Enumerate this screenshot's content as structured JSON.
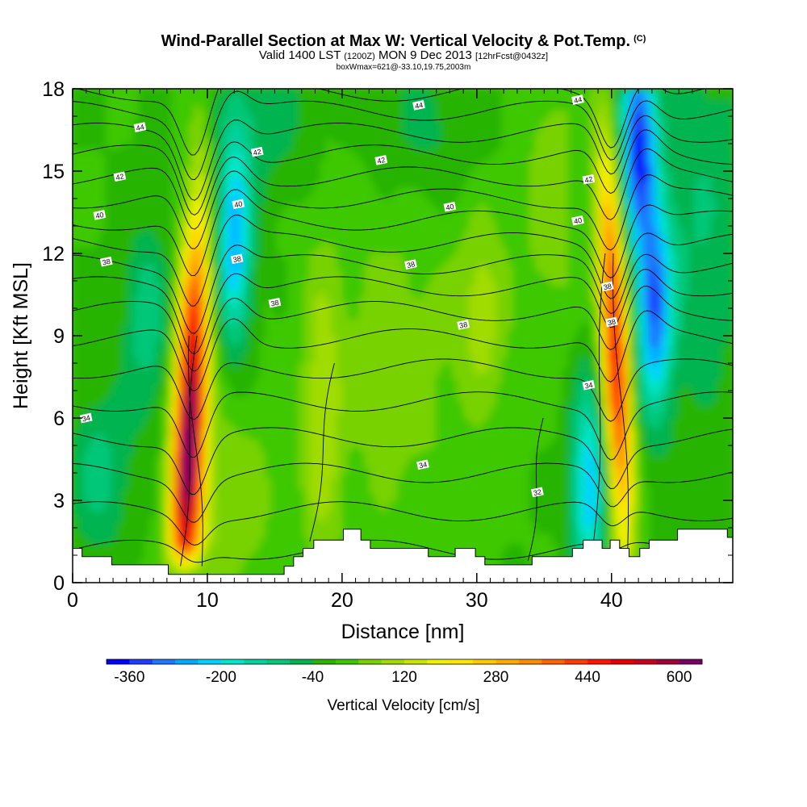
{
  "header": {
    "title": "Wind-Parallel Section at Max W: Vertical Velocity & Pot.Temp.",
    "copyright": "(C)",
    "valid_prefix": "Valid 1400 LST",
    "valid_utc": "(1200Z)",
    "valid_date": "MON 9 Dec 2013",
    "forecast": "[12hrFcst@0432z]",
    "box_info": "boxWmax=621@-33.10,19.75,2003m"
  },
  "chart_data": {
    "type": "heatmap",
    "title": "Wind-Parallel Section at Max W: Vertical Velocity & Pot.Temp.",
    "xlabel": "Distance [nm]",
    "ylabel": "Height [Kft MSL]",
    "xlim": [
      0,
      49
    ],
    "ylim": [
      0,
      18
    ],
    "x_ticks": [
      0,
      10,
      20,
      30,
      40
    ],
    "y_ticks": [
      0,
      3,
      6,
      9,
      12,
      15,
      18
    ],
    "colorbar": {
      "label": "Vertical Velocity [cm/s]",
      "tick_labels": [
        "-360",
        "-200",
        "-40",
        "120",
        "280",
        "440",
        "600"
      ],
      "levels": [
        -400,
        -360,
        -320,
        -280,
        -240,
        -200,
        -160,
        -120,
        -80,
        -40,
        0,
        40,
        80,
        120,
        160,
        200,
        240,
        280,
        320,
        360,
        400,
        440,
        480,
        520,
        560,
        600,
        640
      ],
      "colors": [
        "#0000ff",
        "#1e3cff",
        "#1e78ff",
        "#00aaff",
        "#00d2ff",
        "#00e6c8",
        "#00d2a0",
        "#00c878",
        "#00b450",
        "#28b400",
        "#3cc800",
        "#78d200",
        "#a0dc00",
        "#c8e600",
        "#f0f000",
        "#ffe600",
        "#ffc800",
        "#ffaa00",
        "#ff8c00",
        "#ff6400",
        "#ff3c00",
        "#ff1400",
        "#e60000",
        "#c8001e",
        "#a0003c",
        "#780064"
      ]
    },
    "updrafts": [
      {
        "x": 8.7,
        "z_base": 0.5,
        "z_top": 18,
        "peak_cms": 621,
        "peak_height": 5.5,
        "description": "main updraft core"
      },
      {
        "x": 40.5,
        "z_base": 1.0,
        "z_top": 18,
        "peak_cms": 480,
        "peak_height": 8.5,
        "description": "second updraft core"
      }
    ],
    "downdrafts": [
      {
        "x": 12,
        "z": 12.5,
        "min_cms": -260
      },
      {
        "x": 38.3,
        "z": 3.5,
        "min_cms": -240
      },
      {
        "x": 42,
        "z": 16,
        "min_cms": -360
      },
      {
        "x": 43.2,
        "z": 10,
        "min_cms": -300
      }
    ],
    "theta_contour_labels": [
      {
        "x": 1,
        "z": 6.0,
        "label": "34"
      },
      {
        "x": 2.5,
        "z": 11.7,
        "label": "38"
      },
      {
        "x": 2,
        "z": 13.4,
        "label": "40"
      },
      {
        "x": 3.5,
        "z": 14.8,
        "label": "42"
      },
      {
        "x": 5,
        "z": 16.6,
        "label": "44"
      },
      {
        "x": 12.2,
        "z": 11.8,
        "label": "38"
      },
      {
        "x": 12.3,
        "z": 13.8,
        "label": "40"
      },
      {
        "x": 13.7,
        "z": 15.7,
        "label": "42"
      },
      {
        "x": 15,
        "z": 10.2,
        "label": "38"
      },
      {
        "x": 22.9,
        "z": 15.4,
        "label": "42"
      },
      {
        "x": 25.7,
        "z": 17.4,
        "label": "44"
      },
      {
        "x": 25.1,
        "z": 11.6,
        "label": "38"
      },
      {
        "x": 28,
        "z": 13.7,
        "label": "40"
      },
      {
        "x": 29,
        "z": 9.4,
        "label": "38"
      },
      {
        "x": 26,
        "z": 4.3,
        "label": "34"
      },
      {
        "x": 34.5,
        "z": 3.3,
        "label": "32"
      },
      {
        "x": 37.5,
        "z": 13.2,
        "label": "40"
      },
      {
        "x": 38.3,
        "z": 14.7,
        "label": "42"
      },
      {
        "x": 37.5,
        "z": 17.6,
        "label": "44"
      },
      {
        "x": 39.7,
        "z": 10.8,
        "label": "38"
      },
      {
        "x": 40,
        "z": 9.5,
        "label": "38"
      },
      {
        "x": 38.3,
        "z": 7.2,
        "label": "34"
      }
    ],
    "terrain_kft": [
      [
        0,
        1.25
      ],
      [
        0.7,
        1.25
      ],
      [
        0.7,
        0.95
      ],
      [
        2.9,
        0.95
      ],
      [
        2.9,
        0.65
      ],
      [
        7.1,
        0.65
      ],
      [
        7.1,
        0.3
      ],
      [
        15.7,
        0.3
      ],
      [
        15.7,
        0.6
      ],
      [
        16.4,
        0.6
      ],
      [
        16.4,
        0.95
      ],
      [
        17.1,
        0.95
      ],
      [
        17.1,
        1.25
      ],
      [
        17.9,
        1.25
      ],
      [
        17.9,
        1.55
      ],
      [
        20.1,
        1.55
      ],
      [
        20.1,
        1.95
      ],
      [
        21.4,
        1.95
      ],
      [
        21.4,
        1.55
      ],
      [
        22.1,
        1.55
      ],
      [
        22.1,
        1.25
      ],
      [
        26.4,
        1.25
      ],
      [
        26.4,
        0.95
      ],
      [
        28.4,
        0.95
      ],
      [
        28.4,
        1.25
      ],
      [
        29.9,
        1.25
      ],
      [
        29.9,
        0.95
      ],
      [
        30.6,
        0.95
      ],
      [
        30.6,
        0.65
      ],
      [
        34.1,
        0.65
      ],
      [
        34.1,
        0.95
      ],
      [
        37.1,
        0.95
      ],
      [
        37.1,
        1.25
      ],
      [
        37.9,
        1.25
      ],
      [
        37.9,
        1.55
      ],
      [
        39.3,
        1.55
      ],
      [
        39.3,
        1.25
      ],
      [
        39.9,
        1.25
      ],
      [
        39.9,
        1.55
      ],
      [
        40.6,
        1.55
      ],
      [
        40.6,
        1.25
      ],
      [
        41.3,
        1.25
      ],
      [
        41.3,
        0.95
      ],
      [
        42.1,
        0.95
      ],
      [
        42.1,
        1.25
      ],
      [
        42.8,
        1.25
      ],
      [
        42.8,
        1.55
      ],
      [
        44.9,
        1.55
      ],
      [
        44.9,
        1.95
      ],
      [
        48.6,
        1.95
      ],
      [
        48.6,
        1.65
      ],
      [
        49,
        1.65
      ]
    ]
  }
}
